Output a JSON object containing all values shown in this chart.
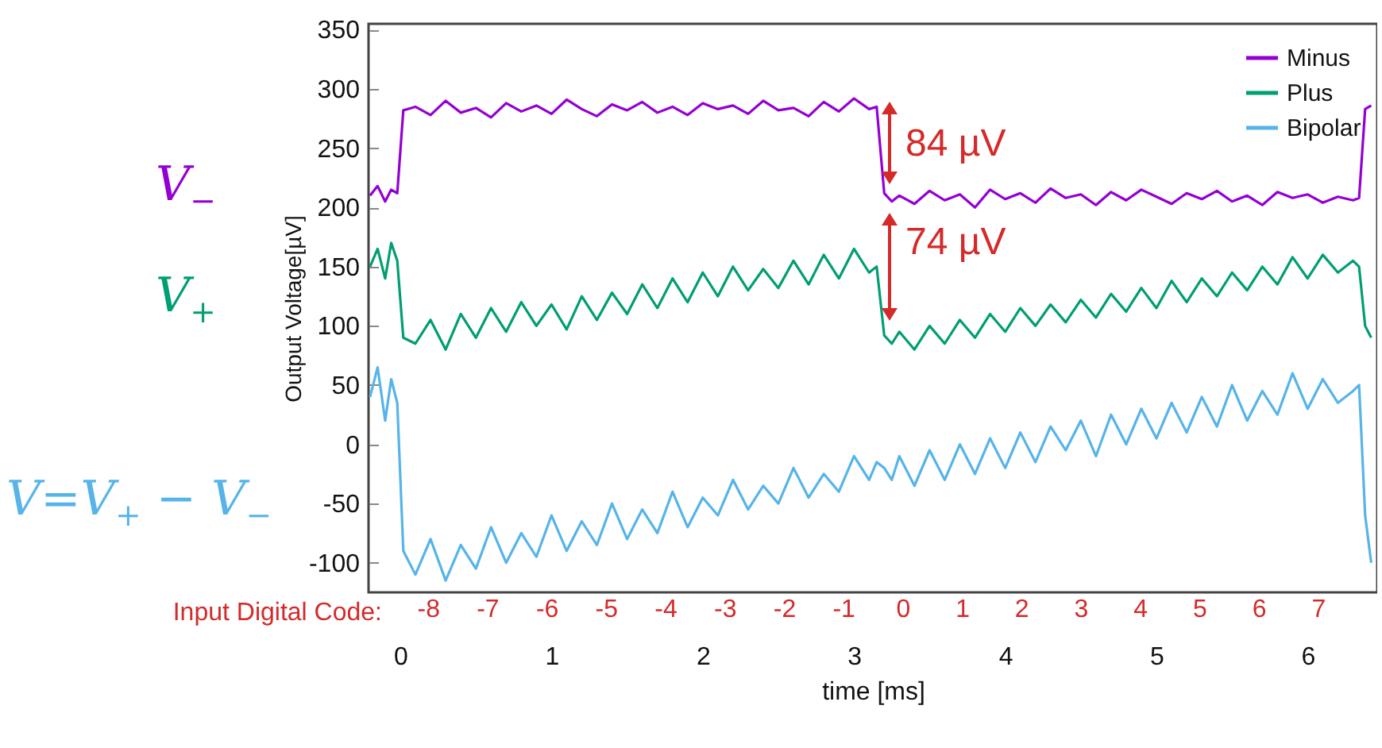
{
  "chart_data": {
    "type": "line",
    "xlabel": "time [ms]",
    "ylabel": "Output Voltage[µV]",
    "x2label": "Input Digital Code:",
    "xlim": [
      -0.21,
      6.46
    ],
    "xticks": [
      0,
      1,
      2,
      3,
      4,
      5,
      6
    ],
    "x2lim": [
      -9.0,
      8.0
    ],
    "x2ticks": [
      -8,
      -7,
      -6,
      -5,
      -4,
      -3,
      -2,
      -1,
      0,
      1,
      2,
      3,
      4,
      5,
      6,
      7
    ],
    "ylim": [
      -125,
      355
    ],
    "yticks": [
      -100,
      -50,
      0,
      50,
      100,
      150,
      200,
      250,
      300,
      350
    ],
    "legend": "top right",
    "grid": false,
    "annotations": [
      "84 µV",
      "74 µV",
      "V$_{−}$",
      "V$_{+}$",
      "V=V$_{+}$ − V$_{−}$"
    ],
    "x": [
      -0.2,
      -0.15,
      -0.1,
      -0.06,
      -0.02,
      0.02,
      0.1,
      0.2,
      0.3,
      0.4,
      0.5,
      0.6,
      0.7,
      0.8,
      0.9,
      1.0,
      1.1,
      1.2,
      1.3,
      1.4,
      1.5,
      1.6,
      1.7,
      1.8,
      1.9,
      2.0,
      2.1,
      2.2,
      2.3,
      2.4,
      2.5,
      2.6,
      2.7,
      2.8,
      2.9,
      3.0,
      3.1,
      3.15,
      3.2,
      3.25,
      3.3,
      3.4,
      3.5,
      3.6,
      3.7,
      3.8,
      3.9,
      4.0,
      4.1,
      4.2,
      4.3,
      4.4,
      4.5,
      4.6,
      4.7,
      4.8,
      4.9,
      5.0,
      5.1,
      5.2,
      5.3,
      5.4,
      5.5,
      5.6,
      5.7,
      5.8,
      5.9,
      6.0,
      6.1,
      6.2,
      6.3,
      6.34,
      6.38,
      6.42
    ],
    "series": [
      {
        "name": "Minus",
        "color": "#9400d3",
        "values": [
          210,
          218,
          205,
          215,
          212,
          282,
          285,
          278,
          290,
          280,
          284,
          276,
          288,
          281,
          286,
          279,
          291,
          283,
          277,
          287,
          282,
          289,
          280,
          285,
          278,
          288,
          283,
          286,
          279,
          290,
          282,
          284,
          277,
          289,
          281,
          292,
          283,
          285,
          212,
          205,
          210,
          203,
          214,
          206,
          211,
          200,
          215,
          207,
          212,
          204,
          216,
          208,
          211,
          202,
          213,
          206,
          215,
          209,
          203,
          212,
          207,
          214,
          205,
          210,
          202,
          213,
          208,
          211,
          204,
          209,
          206,
          208,
          283,
          286
        ]
      },
      {
        "name": "Plus",
        "color": "#009e73",
        "values": [
          150,
          165,
          140,
          170,
          155,
          90,
          85,
          105,
          80,
          110,
          90,
          115,
          95,
          120,
          100,
          118,
          97,
          125,
          105,
          128,
          110,
          135,
          115,
          140,
          120,
          145,
          125,
          150,
          130,
          148,
          132,
          155,
          135,
          160,
          140,
          165,
          145,
          150,
          92,
          85,
          95,
          80,
          100,
          85,
          105,
          90,
          110,
          95,
          115,
          100,
          118,
          103,
          122,
          107,
          127,
          112,
          132,
          115,
          138,
          120,
          140,
          125,
          145,
          130,
          150,
          135,
          158,
          140,
          160,
          145,
          155,
          150,
          100,
          90
        ]
      },
      {
        "name": "Bipolar",
        "color": "#56b4e9",
        "values": [
          40,
          65,
          20,
          55,
          35,
          -90,
          -110,
          -80,
          -115,
          -85,
          -105,
          -70,
          -100,
          -75,
          -95,
          -60,
          -90,
          -65,
          -85,
          -50,
          -80,
          -55,
          -75,
          -40,
          -70,
          -45,
          -60,
          -30,
          -55,
          -35,
          -50,
          -20,
          -45,
          -25,
          -40,
          -10,
          -30,
          -15,
          -20,
          -30,
          -10,
          -35,
          -5,
          -30,
          0,
          -25,
          5,
          -20,
          10,
          -15,
          15,
          -5,
          20,
          -10,
          25,
          0,
          30,
          5,
          35,
          10,
          40,
          15,
          50,
          20,
          45,
          25,
          60,
          30,
          55,
          35,
          45,
          50,
          -60,
          -100
        ]
      }
    ]
  }
}
